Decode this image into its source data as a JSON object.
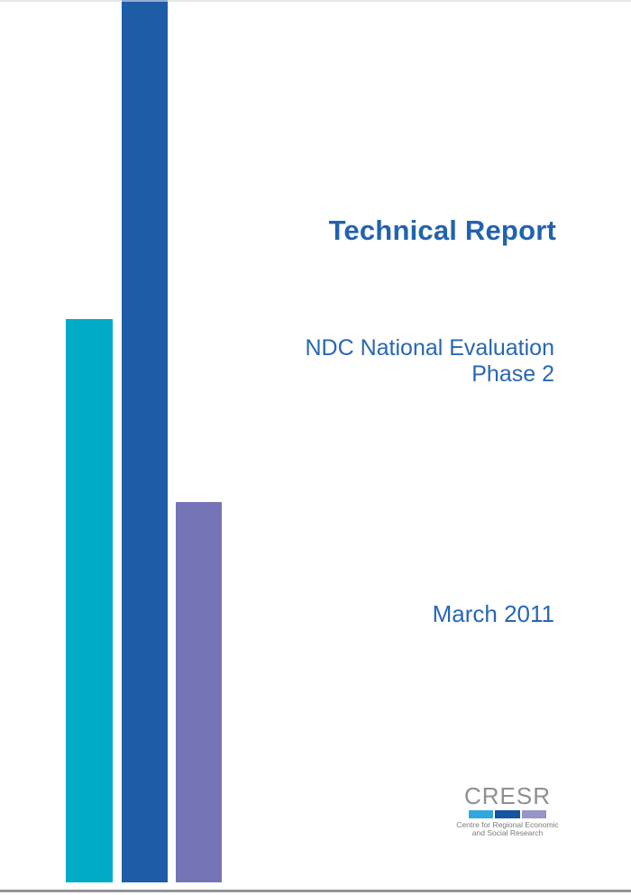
{
  "cover": {
    "title": "Technical Report",
    "subtitle": {
      "line1": "NDC National Evaluation",
      "line2": "Phase 2"
    },
    "date": "March 2011"
  },
  "logo": {
    "acronym": "CRESR",
    "name_line1": "Centre for Regional Economic",
    "name_line2": "and Social Research",
    "bar_colors": {
      "light_blue": "#2FA8E1",
      "dark_blue": "#15549E",
      "purple": "#9694C9"
    }
  },
  "decor_bars": {
    "cyan": "#00ABC8",
    "blue": "#1E5CA8",
    "purple": "#7574B6"
  },
  "colors": {
    "title_text": "#2163AF",
    "body_text": "#2767B3",
    "logo_text": "#8F8F8F",
    "logo_small_text": "#7A7A7A"
  }
}
